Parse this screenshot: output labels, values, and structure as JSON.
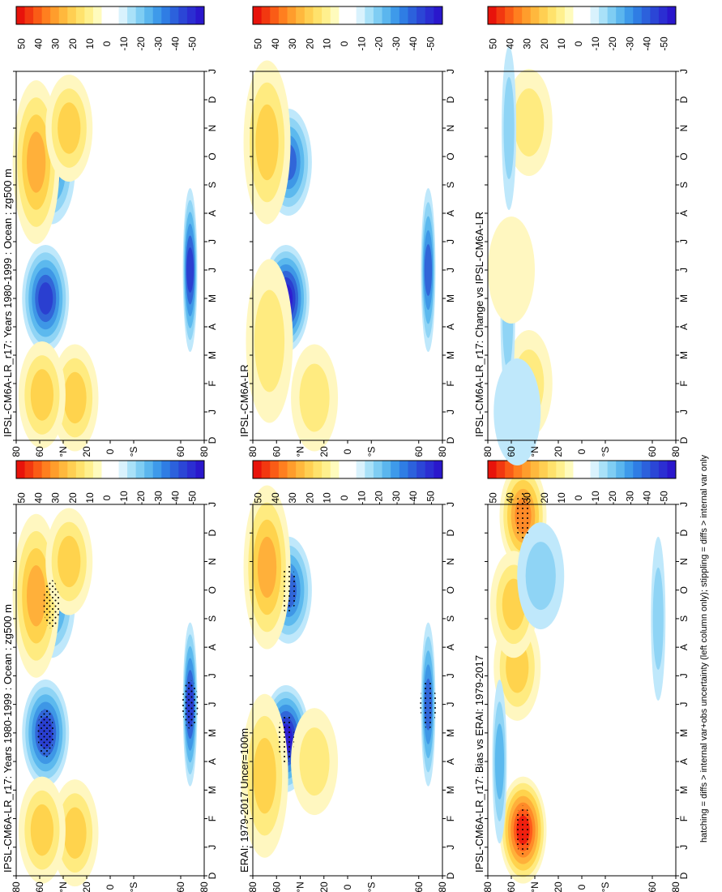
{
  "footnote": "hatching = diffs > internal var+obs uncertainty (left column only); stippling = diffs > internal var only",
  "colors": {
    "frame": "#000000",
    "pos": [
      "#fff7c0",
      "#ffeb80",
      "#ffd34d",
      "#ffb03a",
      "#ff8a28",
      "#ff5a1a",
      "#f0200f"
    ],
    "neg": [
      "#bfe8fb",
      "#8fd4f5",
      "#5cb9ee",
      "#3e97e6",
      "#3166d8",
      "#2a3fd0",
      "#2d1fd0"
    ]
  },
  "colorbar": {
    "labels": [
      "50",
      "40",
      "30",
      "20",
      "10",
      "0",
      "-10",
      "-20",
      "-30",
      "-40",
      "-50"
    ],
    "swatches": [
      "#e8130b",
      "#f23810",
      "#fa5c16",
      "#ff7f1f",
      "#ff9d2c",
      "#ffb83d",
      "#ffcf52",
      "#ffe26c",
      "#fff08e",
      "#fffbbd",
      "#ffffff",
      "#ffffff",
      "#d9f2fd",
      "#a9e1f8",
      "#7fcdf3",
      "#5bb6ee",
      "#3e9aea",
      "#2f7de4",
      "#2c61dc",
      "#2b46d6",
      "#2b2ed2",
      "#2a17cc"
    ]
  },
  "axes": {
    "lat_ticks": [
      "80",
      "60",
      "°N",
      "20",
      "0",
      "°S",
      "60",
      "80"
    ],
    "month_ticks": [
      "D",
      "J",
      "F",
      "M",
      "A",
      "M",
      "J",
      "J",
      "A",
      "S",
      "O",
      "N",
      "D",
      "J"
    ]
  },
  "chart_data": [
    {
      "type": "heatmap",
      "title": "IPSL-CM6A-LR_r17: Years 1980-1999 : Ocean : zg500 m",
      "xlabel": "",
      "ylabel": "",
      "x_axis": "month (D, J ... D, J)",
      "y_axis": "latitude 80N to 80S",
      "colorbar_range": [
        -50,
        50
      ],
      "overlay": "hatching",
      "features": [
        {
          "kind": "neg",
          "lat": 55,
          "month": 5.0,
          "peak": -38
        },
        {
          "kind": "neg",
          "lat": 50,
          "month": 9.5,
          "peak": -25
        },
        {
          "kind": "pos",
          "lat": 30,
          "month": 1.5,
          "peak": 18
        },
        {
          "kind": "pos",
          "lat": 58,
          "month": 1.6,
          "peak": 16
        },
        {
          "kind": "pos",
          "lat": 63,
          "month": 9.8,
          "peak": 22
        },
        {
          "kind": "pos",
          "lat": 35,
          "month": 11.0,
          "peak": 15
        },
        {
          "kind": "neg",
          "lat": -68,
          "month": 6.0,
          "peak": -35
        }
      ]
    },
    {
      "type": "heatmap",
      "title": "IPSL-CM6A-LR_r17: Years 1980-1999 : Ocean : zg500 m",
      "xlabel": "",
      "ylabel": "",
      "x_axis": "month (D, J ... D, J)",
      "y_axis": "latitude 80N to 80S",
      "colorbar_range": [
        -50,
        50
      ],
      "overlay": "none",
      "features": [
        {
          "kind": "neg",
          "lat": 55,
          "month": 5.0,
          "peak": -38
        },
        {
          "kind": "neg",
          "lat": 50,
          "month": 9.5,
          "peak": -25
        },
        {
          "kind": "pos",
          "lat": 30,
          "month": 1.5,
          "peak": 18
        },
        {
          "kind": "pos",
          "lat": 58,
          "month": 1.6,
          "peak": 16
        },
        {
          "kind": "pos",
          "lat": 63,
          "month": 9.8,
          "peak": 22
        },
        {
          "kind": "pos",
          "lat": 35,
          "month": 11.0,
          "peak": 15
        },
        {
          "kind": "neg",
          "lat": -68,
          "month": 6.0,
          "peak": -35
        }
      ]
    },
    {
      "type": "heatmap",
      "title": "ERAI: 1979-2017 Uncer=100m",
      "xlabel": "",
      "ylabel": "",
      "x_axis": "month (D, J ... D, J)",
      "y_axis": "latitude 80N to 80S",
      "colorbar_range": [
        -50,
        50
      ],
      "overlay": "stippling",
      "features": [
        {
          "kind": "neg",
          "lat": 52,
          "month": 4.8,
          "peak": -42
        },
        {
          "kind": "neg",
          "lat": 50,
          "month": 10.0,
          "peak": -30
        },
        {
          "kind": "pos",
          "lat": 70,
          "month": 3.5,
          "peak": 15
        },
        {
          "kind": "pos",
          "lat": 68,
          "month": 10.8,
          "peak": 22
        },
        {
          "kind": "pos",
          "lat": 28,
          "month": 4.0,
          "peak": 14
        },
        {
          "kind": "neg",
          "lat": -68,
          "month": 6.0,
          "peak": -32
        }
      ]
    },
    {
      "type": "heatmap",
      "title": "IPSL-CM6A-LR",
      "xlabel": "",
      "ylabel": "",
      "x_axis": "month (D, J ... D, J)",
      "y_axis": "latitude 80N to 80S",
      "colorbar_range": [
        -50,
        50
      ],
      "overlay": "none",
      "features": [
        {
          "kind": "neg",
          "lat": 52,
          "month": 5.0,
          "peak": -42
        },
        {
          "kind": "neg",
          "lat": 50,
          "month": 9.8,
          "peak": -28
        },
        {
          "kind": "pos",
          "lat": 66,
          "month": 3.5,
          "peak": 14
        },
        {
          "kind": "pos",
          "lat": 68,
          "month": 10.5,
          "peak": 18
        },
        {
          "kind": "pos",
          "lat": 28,
          "month": 1.5,
          "peak": 12
        },
        {
          "kind": "neg",
          "lat": -68,
          "month": 6.0,
          "peak": -32
        }
      ]
    },
    {
      "type": "heatmap",
      "title": "IPSL-CM6A-LR_r17: Bias vs ERAI: 1979-2017",
      "xlabel": "",
      "ylabel": "",
      "x_axis": "month (D, J ... D, J)",
      "y_axis": "latitude 80N to 80S",
      "colorbar_range": [
        -50,
        50
      ],
      "overlay": "stippling",
      "features": [
        {
          "kind": "pos",
          "lat": 50,
          "month": 1.6,
          "peak": 40
        },
        {
          "kind": "pos",
          "lat": 50,
          "month": 12.6,
          "peak": 30
        },
        {
          "kind": "pos",
          "lat": 55,
          "month": 7.3,
          "peak": 15
        },
        {
          "kind": "pos",
          "lat": 58,
          "month": 9.5,
          "peak": 18
        },
        {
          "kind": "neg",
          "lat": 70,
          "month": 4.0,
          "peak": -15
        },
        {
          "kind": "neg",
          "lat": 35,
          "month": 10.5,
          "peak": -14
        },
        {
          "kind": "neg",
          "lat": -65,
          "month": 9.0,
          "peak": -12
        }
      ]
    },
    {
      "type": "heatmap",
      "title": "IPSL-CM6A-LR_r17: Change vs IPSL-CM6A-LR",
      "xlabel": "",
      "ylabel": "",
      "x_axis": "month (D, J ... D, J)",
      "y_axis": "latitude 80N to 80S",
      "colorbar_range": [
        -50,
        50
      ],
      "overlay": "none",
      "features": [
        {
          "kind": "pos",
          "lat": 45,
          "month": 2.0,
          "peak": 14
        },
        {
          "kind": "pos",
          "lat": 45,
          "month": 11.2,
          "peak": 12
        },
        {
          "kind": "neg",
          "lat": 63,
          "month": 4.3,
          "peak": -12
        },
        {
          "kind": "neg",
          "lat": 62,
          "month": 11.0,
          "peak": -12
        },
        {
          "kind": "pos",
          "lat": 60,
          "month": 6.0,
          "peak": 8
        },
        {
          "kind": "neg",
          "lat": 55,
          "month": 1.0,
          "peak": -8
        }
      ]
    }
  ]
}
